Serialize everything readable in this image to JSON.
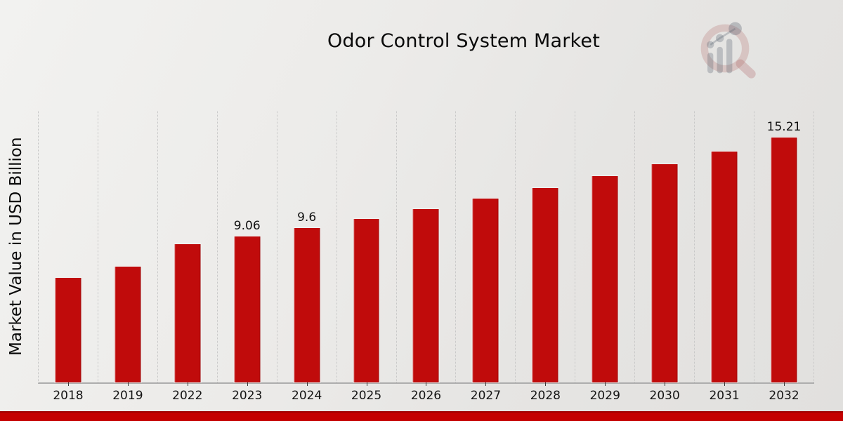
{
  "page": {
    "title": "Odor Control System Market",
    "y_axis_label": "Market Value in USD Billion"
  },
  "colors": {
    "bar": "#c00b0b",
    "footer_strip": "#c40000",
    "footer_strip_edge": "#9e0000",
    "text": "#0a0a0a",
    "gridline": "#c6c6c6",
    "logo_ring": "#b06a6a",
    "logo_glyph": "#5a6270"
  },
  "chart_data": {
    "type": "bar",
    "title": "Odor Control System Market",
    "xlabel": "",
    "ylabel": "Market Value in USD Billion",
    "categories": [
      "2018",
      "2019",
      "2022",
      "2023",
      "2024",
      "2025",
      "2026",
      "2027",
      "2028",
      "2029",
      "2030",
      "2031",
      "2032"
    ],
    "values": [
      6.5,
      7.19,
      8.59,
      9.06,
      9.6,
      10.17,
      10.77,
      11.41,
      12.08,
      12.8,
      13.55,
      14.36,
      15.21
    ],
    "data_labels": {
      "2023": "9.06",
      "2024": "9.6",
      "2032": "15.21"
    },
    "ylim": [
      0,
      16.87
    ],
    "grid": "vertical-dotted",
    "legend": "none",
    "y_axis_ticks": "none"
  }
}
